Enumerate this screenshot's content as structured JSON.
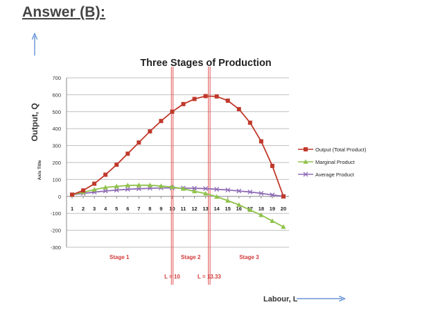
{
  "heading": "Answer (B):",
  "y_outer_label": "Output, Q",
  "x_outer_label": "Labour, L",
  "chart_data": {
    "type": "line",
    "title": "Three Stages of Production",
    "ylabel": "Axis Title",
    "ylim": [
      -300,
      700
    ],
    "yticks": [
      700,
      600,
      500,
      400,
      300,
      200,
      100,
      0,
      -100,
      -200,
      -300
    ],
    "x": [
      1,
      2,
      3,
      4,
      5,
      6,
      7,
      8,
      9,
      10,
      11,
      12,
      13,
      14,
      15,
      16,
      17,
      18,
      19,
      20
    ],
    "grid": true,
    "legend_position": "right",
    "series": [
      {
        "name": "Output (Total Product)",
        "color": "#c0392b",
        "marker": "square",
        "values": [
          10,
          35,
          75,
          128,
          187,
          252,
          318,
          384,
          445,
          500,
          545,
          575,
          592,
          590,
          565,
          515,
          435,
          325,
          180,
          0
        ]
      },
      {
        "name": "Marginal Product",
        "color": "#8fc24a",
        "marker": "triangle",
        "values": [
          10,
          25,
          40,
          53,
          59,
          65,
          66,
          66,
          61,
          55,
          45,
          30,
          17,
          -2,
          -25,
          -50,
          -80,
          -110,
          -145,
          -180
        ]
      },
      {
        "name": "Average Product",
        "color": "#8e6bb5",
        "marker": "cross",
        "values": [
          10,
          18,
          25,
          32,
          37,
          42,
          45,
          48,
          50,
          50,
          49,
          48,
          46,
          42,
          38,
          32,
          26,
          18,
          9,
          0
        ]
      }
    ],
    "vlines": [
      {
        "x": 10,
        "label": "L = 10"
      },
      {
        "x": 13.33,
        "label": "L = 13.33"
      }
    ],
    "stages": [
      {
        "label": "Stage 1",
        "from": 0.5,
        "to": 10
      },
      {
        "label": "Stage 2",
        "from": 10,
        "to": 13.33
      },
      {
        "label": "Stage 3",
        "from": 13.33,
        "to": 20.5
      }
    ]
  },
  "colors": {
    "stage_line": "#e05050",
    "stage_text": "#d23a3a",
    "axis_arrow": "#4a7fd0",
    "grid": "#bfbfbf"
  }
}
